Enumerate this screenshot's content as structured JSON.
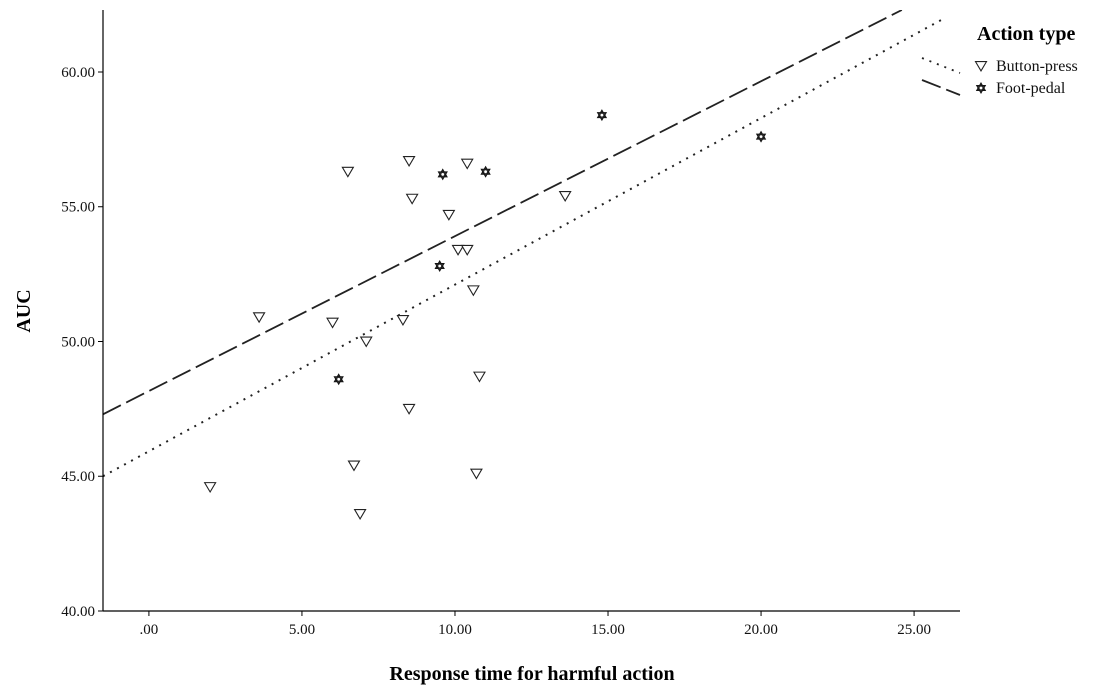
{
  "chart_data": {
    "type": "scatter",
    "xlabel": "Response time for harmful action",
    "ylabel": "AUC",
    "xlim": [
      -1.5,
      26.5
    ],
    "ylim": [
      40,
      62.3
    ],
    "x_ticks": [
      0,
      5,
      10,
      15,
      20,
      25
    ],
    "x_tick_labels": [
      ".00",
      "5.00",
      "10.00",
      "15.00",
      "20.00",
      "25.00"
    ],
    "y_ticks": [
      40,
      45,
      50,
      55,
      60
    ],
    "y_tick_labels": [
      "40.00",
      "45.00",
      "50.00",
      "55.00",
      "60.00"
    ],
    "grid": false,
    "legend": {
      "title": "Action type",
      "placement": "top-right",
      "entries": [
        "Button-press",
        "Foot-pedal"
      ]
    },
    "series": [
      {
        "name": "Button-press",
        "marker": "triangle-down",
        "line_style": "dotted",
        "points": [
          {
            "x": 2.0,
            "y": 44.6
          },
          {
            "x": 3.6,
            "y": 50.9
          },
          {
            "x": 6.0,
            "y": 50.7
          },
          {
            "x": 6.5,
            "y": 56.3
          },
          {
            "x": 6.7,
            "y": 45.4
          },
          {
            "x": 6.9,
            "y": 43.6
          },
          {
            "x": 7.1,
            "y": 50.0
          },
          {
            "x": 8.3,
            "y": 50.8
          },
          {
            "x": 8.5,
            "y": 56.7
          },
          {
            "x": 8.5,
            "y": 47.5
          },
          {
            "x": 8.6,
            "y": 55.3
          },
          {
            "x": 9.8,
            "y": 54.7
          },
          {
            "x": 10.1,
            "y": 53.4
          },
          {
            "x": 10.4,
            "y": 53.4
          },
          {
            "x": 10.4,
            "y": 56.6
          },
          {
            "x": 10.6,
            "y": 51.9
          },
          {
            "x": 10.7,
            "y": 45.1
          },
          {
            "x": 10.8,
            "y": 48.7
          },
          {
            "x": 13.6,
            "y": 55.4
          }
        ],
        "fit_line": {
          "x": [
            -1.5,
            26.0
          ],
          "y": [
            45.0,
            62.0
          ]
        }
      },
      {
        "name": "Foot-pedal",
        "marker": "star-of-david",
        "line_style": "dashed",
        "points": [
          {
            "x": 6.2,
            "y": 48.6
          },
          {
            "x": 9.5,
            "y": 52.8
          },
          {
            "x": 9.6,
            "y": 56.2
          },
          {
            "x": 11.0,
            "y": 56.3
          },
          {
            "x": 14.8,
            "y": 58.4
          },
          {
            "x": 20.0,
            "y": 57.6
          }
        ],
        "fit_line": {
          "x": [
            -1.5,
            24.6
          ],
          "y": [
            47.3,
            62.3
          ]
        }
      }
    ]
  }
}
